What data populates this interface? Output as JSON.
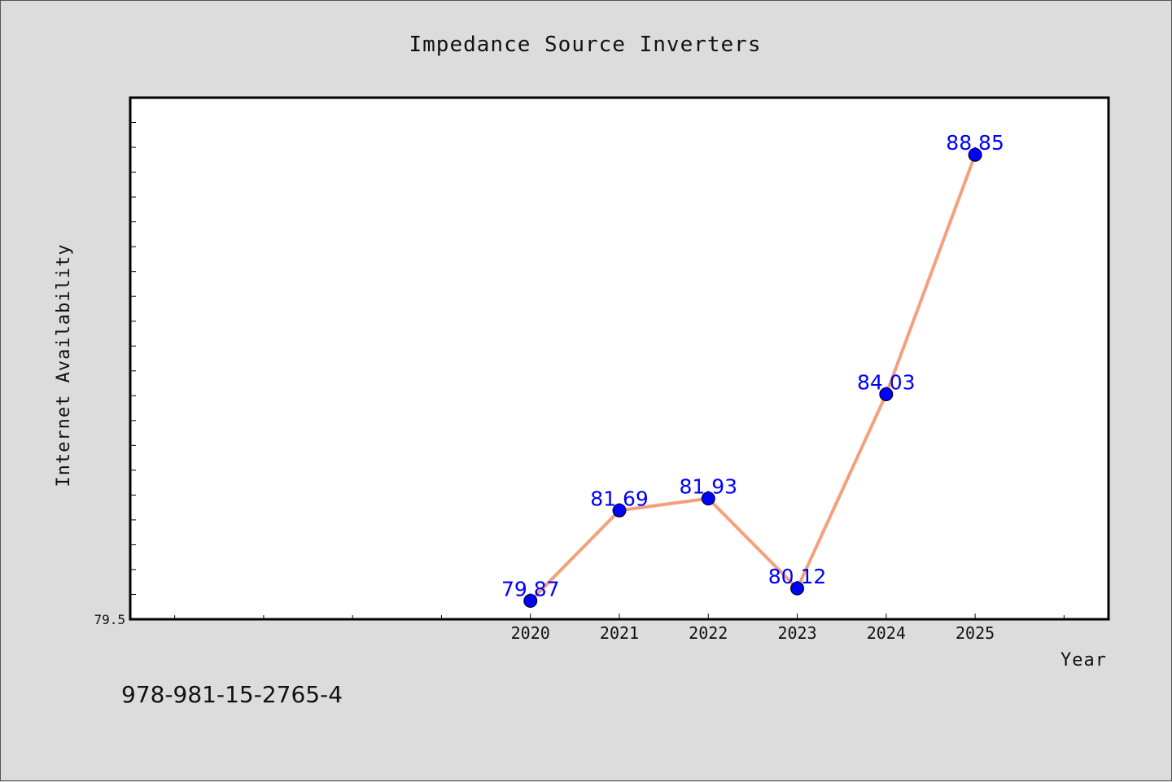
{
  "chart_data": {
    "type": "line",
    "title": "Impedance Source Inverters",
    "xlabel": "Year",
    "ylabel": "Internet Availability",
    "x": [
      "2020",
      "2021",
      "2022",
      "2023",
      "2024",
      "2025"
    ],
    "series": [
      {
        "values": [
          79.87,
          81.69,
          81.93,
          80.12,
          84.03,
          88.85
        ],
        "labels": [
          "79.87",
          "81.69",
          "81.93",
          "80.12",
          "84.03",
          "88.85"
        ],
        "line_color": "#f4a07c",
        "marker_color": "#0000ff"
      }
    ],
    "ylim": [
      79.5,
      90.0
    ],
    "xlim": [
      2015.5,
      2026.5
    ],
    "y_tick_labels": [
      "79.5"
    ],
    "grid": false,
    "legend": "none"
  },
  "footer_text": "978-981-15-2765-4",
  "colors": {
    "background": "#dcdcdc",
    "plot_area": "#ffffff",
    "data_label": "#0000ff"
  }
}
